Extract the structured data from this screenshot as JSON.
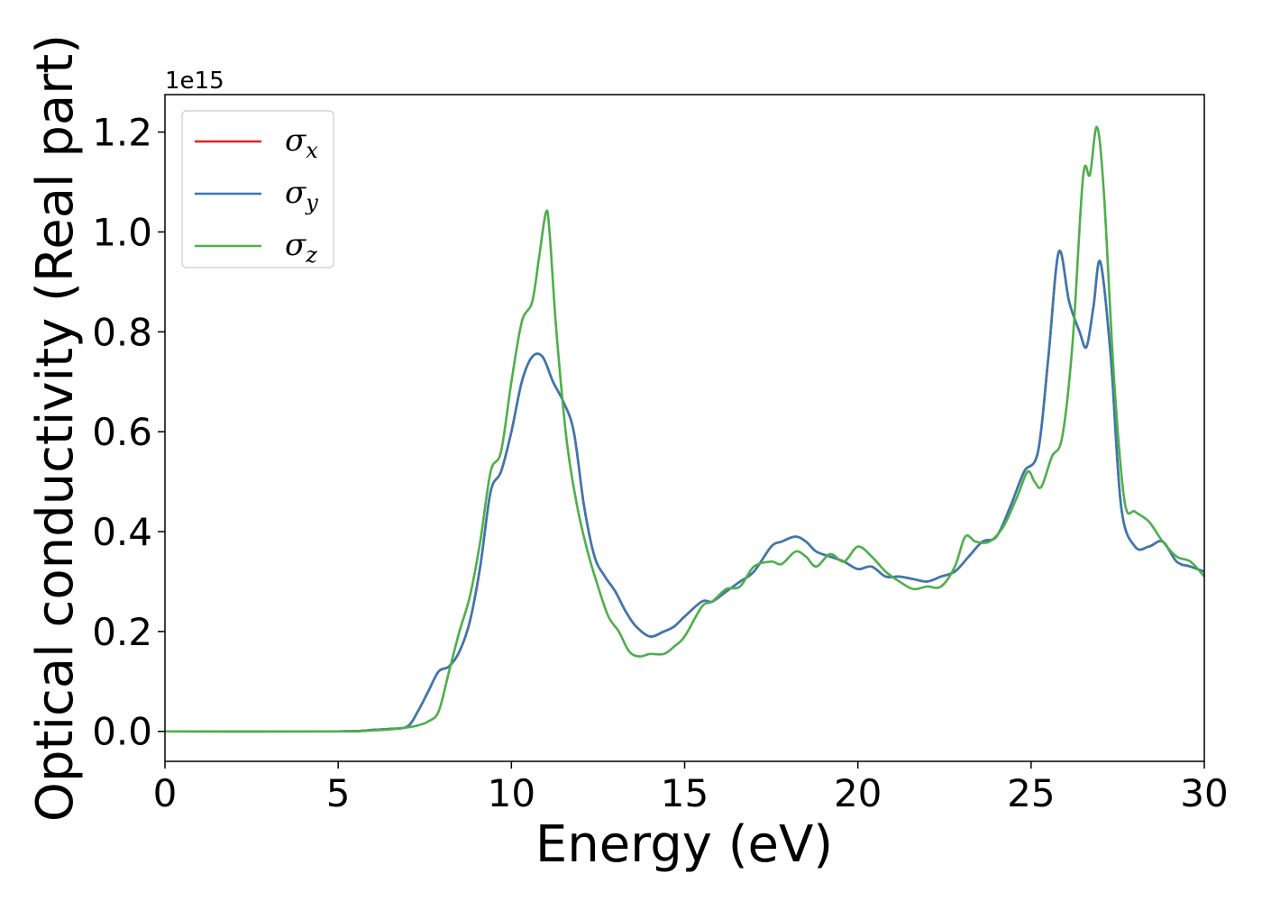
{
  "chart_data": {
    "type": "line",
    "title": "",
    "xlabel": "Energy (eV)",
    "ylabel": "Optical conductivity (Real part)",
    "y_offset_label": "1e15",
    "xlim": [
      0,
      30
    ],
    "ylim": [
      -0.06,
      1.275
    ],
    "x_ticks": [
      0,
      5,
      10,
      15,
      20,
      25,
      30
    ],
    "x_tick_labels": [
      "0",
      "5",
      "10",
      "15",
      "20",
      "25",
      "30"
    ],
    "y_ticks": [
      0.0,
      0.2,
      0.4,
      0.6,
      0.8,
      1.0,
      1.2
    ],
    "y_tick_labels": [
      "0.0",
      "0.2",
      "0.4",
      "0.6",
      "0.8",
      "1.0",
      "1.2"
    ],
    "grid": false,
    "legend_position": "top-left",
    "series": [
      {
        "name": "σ",
        "subscript": "x",
        "color": "#d62728",
        "x": [
          0,
          5,
          6,
          6.5,
          7,
          7.3,
          7.6,
          7.9,
          8.2,
          8.5,
          8.8,
          9.1,
          9.4,
          9.7,
          10.0,
          10.3,
          10.6,
          10.9,
          11.2,
          11.5,
          11.8,
          12.1,
          12.4,
          12.7,
          13.0,
          13.3,
          13.6,
          14.0,
          14.4,
          14.7,
          15.0,
          15.5,
          15.8,
          16.2,
          16.6,
          17.0,
          17.5,
          17.8,
          18.2,
          18.5,
          18.8,
          19.2,
          19.6,
          20.0,
          20.4,
          20.8,
          21.2,
          21.6,
          22.0,
          22.4,
          22.8,
          23.2,
          23.6,
          24.0,
          24.4,
          24.8,
          25.2,
          25.5,
          25.8,
          26.1,
          26.4,
          26.6,
          26.8,
          27.0,
          27.3,
          27.6,
          28.0,
          28.4,
          28.8,
          29.2,
          29.6,
          30.0
        ],
        "values": [
          0.0,
          0.0,
          0.003,
          0.005,
          0.01,
          0.04,
          0.08,
          0.12,
          0.13,
          0.16,
          0.22,
          0.33,
          0.48,
          0.52,
          0.6,
          0.7,
          0.75,
          0.75,
          0.7,
          0.66,
          0.6,
          0.45,
          0.35,
          0.31,
          0.28,
          0.24,
          0.21,
          0.19,
          0.2,
          0.21,
          0.23,
          0.26,
          0.26,
          0.28,
          0.3,
          0.32,
          0.37,
          0.38,
          0.39,
          0.38,
          0.36,
          0.35,
          0.34,
          0.325,
          0.33,
          0.31,
          0.31,
          0.305,
          0.3,
          0.31,
          0.32,
          0.35,
          0.38,
          0.39,
          0.45,
          0.52,
          0.56,
          0.75,
          0.96,
          0.86,
          0.8,
          0.77,
          0.85,
          0.94,
          0.75,
          0.45,
          0.37,
          0.37,
          0.38,
          0.34,
          0.33,
          0.32
        ]
      },
      {
        "name": "σ",
        "subscript": "y",
        "color": "#3a78b0",
        "x": [
          0,
          5,
          6,
          6.5,
          7,
          7.3,
          7.6,
          7.9,
          8.2,
          8.5,
          8.8,
          9.1,
          9.4,
          9.7,
          10.0,
          10.3,
          10.6,
          10.9,
          11.2,
          11.5,
          11.8,
          12.1,
          12.4,
          12.7,
          13.0,
          13.3,
          13.6,
          14.0,
          14.4,
          14.7,
          15.0,
          15.5,
          15.8,
          16.2,
          16.6,
          17.0,
          17.5,
          17.8,
          18.2,
          18.5,
          18.8,
          19.2,
          19.6,
          20.0,
          20.4,
          20.8,
          21.2,
          21.6,
          22.0,
          22.4,
          22.8,
          23.2,
          23.6,
          24.0,
          24.4,
          24.8,
          25.2,
          25.5,
          25.8,
          26.1,
          26.4,
          26.6,
          26.8,
          27.0,
          27.3,
          27.6,
          28.0,
          28.4,
          28.8,
          29.2,
          29.6,
          30.0
        ],
        "values": [
          0.0,
          0.0,
          0.003,
          0.005,
          0.01,
          0.04,
          0.08,
          0.12,
          0.13,
          0.16,
          0.22,
          0.33,
          0.48,
          0.52,
          0.6,
          0.7,
          0.75,
          0.75,
          0.7,
          0.66,
          0.6,
          0.45,
          0.35,
          0.31,
          0.28,
          0.24,
          0.21,
          0.19,
          0.2,
          0.21,
          0.23,
          0.26,
          0.26,
          0.28,
          0.3,
          0.32,
          0.37,
          0.38,
          0.39,
          0.38,
          0.36,
          0.35,
          0.34,
          0.325,
          0.33,
          0.31,
          0.31,
          0.305,
          0.3,
          0.31,
          0.32,
          0.35,
          0.38,
          0.39,
          0.45,
          0.52,
          0.56,
          0.75,
          0.96,
          0.86,
          0.8,
          0.77,
          0.85,
          0.94,
          0.75,
          0.45,
          0.37,
          0.37,
          0.38,
          0.34,
          0.33,
          0.32
        ]
      },
      {
        "name": "σ",
        "subscript": "z",
        "color": "#4daf4a",
        "x": [
          0,
          5,
          6,
          6.5,
          7,
          7.3,
          7.6,
          7.9,
          8.2,
          8.5,
          8.8,
          9.1,
          9.4,
          9.7,
          10.0,
          10.3,
          10.6,
          10.8,
          11.0,
          11.1,
          11.3,
          11.6,
          11.9,
          12.2,
          12.5,
          12.8,
          13.1,
          13.4,
          13.7,
          14.0,
          14.4,
          14.7,
          15.0,
          15.5,
          15.8,
          16.2,
          16.6,
          17.0,
          17.5,
          17.8,
          18.2,
          18.5,
          18.8,
          19.2,
          19.6,
          20.0,
          20.4,
          20.8,
          21.2,
          21.6,
          22.0,
          22.4,
          22.8,
          23.1,
          23.4,
          23.8,
          24.2,
          24.6,
          24.9,
          25.1,
          25.3,
          25.6,
          25.9,
          26.2,
          26.5,
          26.7,
          26.9,
          27.1,
          27.4,
          27.7,
          28.0,
          28.4,
          28.8,
          29.2,
          29.6,
          30.0
        ],
        "values": [
          0.0,
          0.0,
          0.002,
          0.004,
          0.008,
          0.012,
          0.02,
          0.04,
          0.12,
          0.2,
          0.27,
          0.38,
          0.52,
          0.56,
          0.7,
          0.82,
          0.86,
          0.95,
          1.04,
          1.0,
          0.8,
          0.58,
          0.45,
          0.36,
          0.29,
          0.23,
          0.2,
          0.16,
          0.15,
          0.155,
          0.155,
          0.17,
          0.19,
          0.25,
          0.26,
          0.285,
          0.29,
          0.33,
          0.34,
          0.335,
          0.36,
          0.35,
          0.33,
          0.355,
          0.34,
          0.37,
          0.35,
          0.32,
          0.3,
          0.285,
          0.29,
          0.29,
          0.33,
          0.39,
          0.38,
          0.38,
          0.41,
          0.47,
          0.52,
          0.5,
          0.49,
          0.55,
          0.59,
          0.78,
          1.11,
          1.115,
          1.21,
          1.08,
          0.7,
          0.46,
          0.44,
          0.42,
          0.38,
          0.35,
          0.34,
          0.31
        ]
      }
    ]
  }
}
